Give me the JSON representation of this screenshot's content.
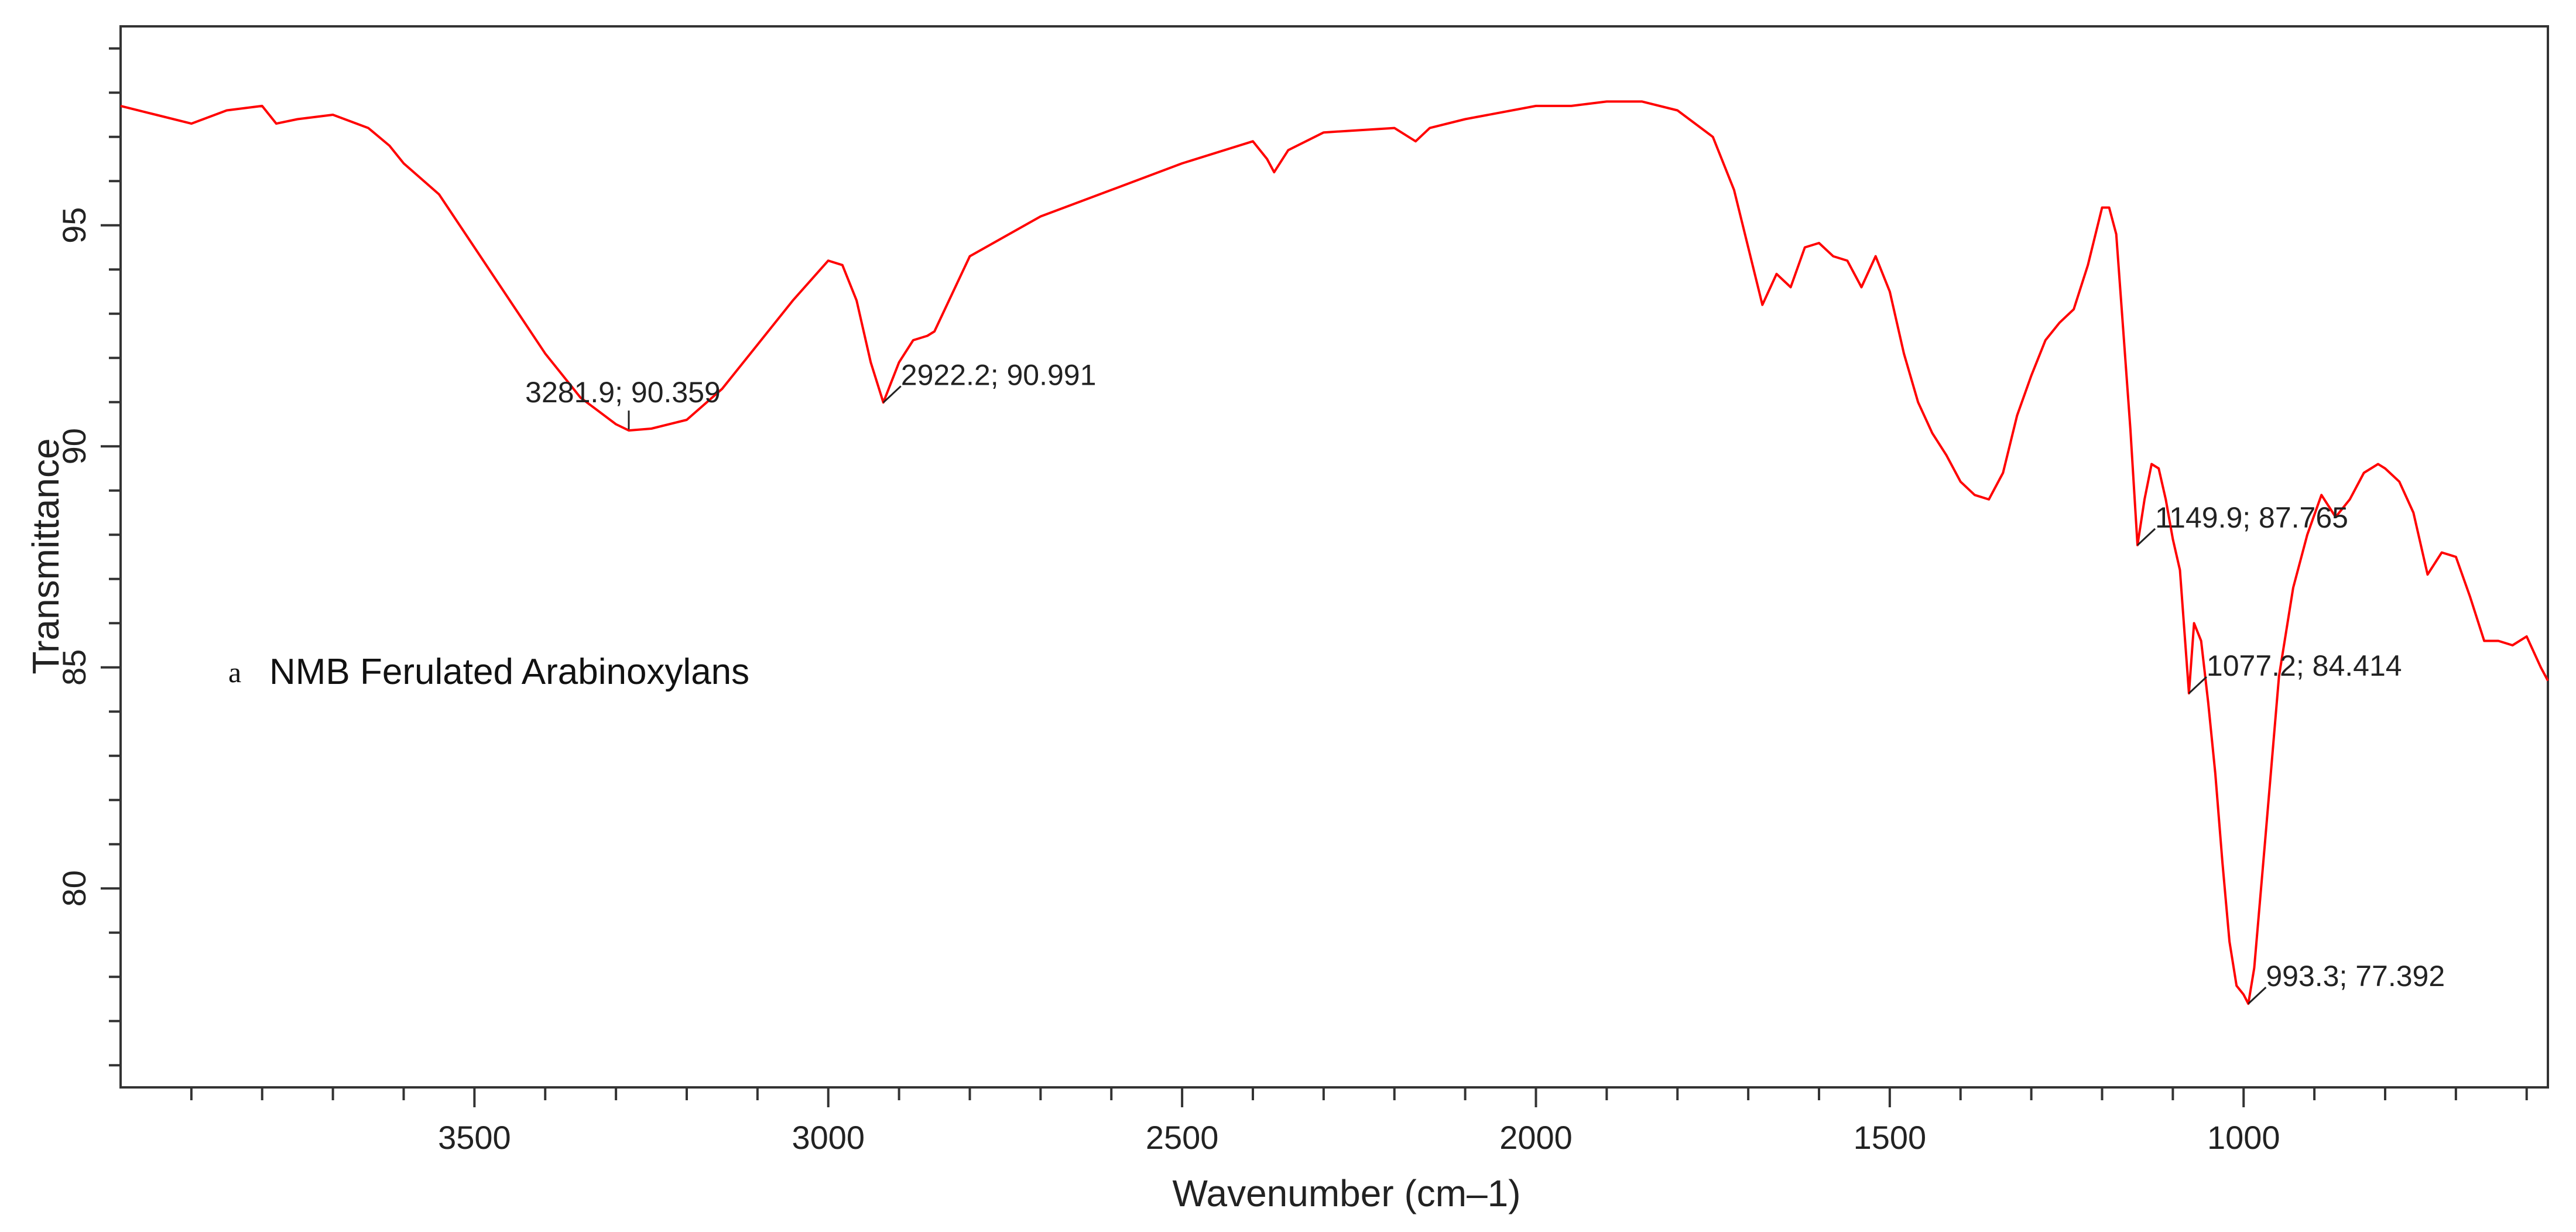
{
  "chart_data": {
    "type": "line",
    "xlabel": "Wavenumber (cm–1)",
    "ylabel": "Transmittance",
    "xlim": [
      4000,
      570
    ],
    "x_reversed": true,
    "ylim": [
      75.5,
      99.5
    ],
    "x_ticks": [
      3500,
      3000,
      2500,
      2000,
      1500,
      1000
    ],
    "y_ticks": [
      80,
      85,
      90,
      95
    ],
    "grid": false,
    "line_color": "#ff0000",
    "legend": {
      "marker": "a",
      "label": "NMB Ferulated Arabinoxylans",
      "placement": "middle-left"
    },
    "series": [
      {
        "x": [
          4000,
          3950,
          3900,
          3850,
          3800,
          3780,
          3750,
          3700,
          3650,
          3620,
          3600,
          3550,
          3500,
          3450,
          3400,
          3350,
          3300,
          3281.9,
          3250,
          3200,
          3150,
          3100,
          3050,
          3000,
          2980,
          2960,
          2940,
          2922.2,
          2900,
          2880,
          2860,
          2850,
          2800,
          2700,
          2600,
          2500,
          2400,
          2380,
          2370,
          2350,
          2300,
          2200,
          2170,
          2150,
          2100,
          2000,
          1950,
          1900,
          1850,
          1800,
          1750,
          1720,
          1700,
          1680,
          1660,
          1640,
          1620,
          1600,
          1580,
          1560,
          1540,
          1520,
          1500,
          1480,
          1460,
          1440,
          1420,
          1400,
          1380,
          1360,
          1340,
          1320,
          1300,
          1280,
          1260,
          1240,
          1220,
          1200,
          1190,
          1180,
          1170,
          1160,
          1149.9,
          1140,
          1130,
          1120,
          1110,
          1100,
          1090,
          1077.2,
          1070,
          1060,
          1050,
          1040,
          1030,
          1020,
          1010,
          1000,
          993.3,
          985,
          970,
          950,
          930,
          910,
          890,
          870,
          850,
          830,
          810,
          800,
          780,
          760,
          740,
          720,
          700,
          680,
          660,
          640,
          620,
          600,
          580,
          570
        ],
        "y": [
          97.7,
          97.5,
          97.3,
          97.6,
          97.7,
          97.3,
          97.4,
          97.5,
          97.2,
          96.8,
          96.4,
          95.7,
          94.5,
          93.3,
          92.1,
          91.1,
          90.5,
          90.359,
          90.4,
          90.6,
          91.3,
          92.3,
          93.3,
          94.2,
          94.1,
          93.3,
          91.9,
          90.991,
          91.9,
          92.4,
          92.5,
          92.6,
          94.3,
          95.2,
          95.8,
          96.4,
          96.9,
          96.5,
          96.2,
          96.7,
          97.1,
          97.2,
          96.9,
          97.2,
          97.4,
          97.7,
          97.7,
          97.8,
          97.8,
          97.6,
          97.0,
          95.8,
          94.5,
          93.2,
          93.9,
          93.6,
          94.5,
          94.6,
          94.3,
          94.2,
          93.6,
          94.3,
          93.5,
          92.1,
          91.0,
          90.3,
          89.8,
          89.2,
          88.9,
          88.8,
          89.4,
          90.7,
          91.6,
          92.4,
          92.8,
          93.1,
          94.1,
          95.4,
          95.4,
          94.8,
          92.6,
          90.4,
          87.765,
          88.8,
          89.6,
          89.5,
          88.8,
          87.9,
          87.2,
          84.414,
          86.0,
          85.6,
          84.2,
          82.6,
          80.6,
          78.8,
          77.8,
          77.6,
          77.392,
          78.2,
          81.0,
          84.8,
          86.8,
          88.0,
          88.9,
          88.4,
          88.8,
          89.4,
          89.6,
          89.5,
          89.2,
          88.5,
          87.1,
          87.6,
          87.5,
          86.6,
          85.6,
          85.6,
          85.5,
          85.7,
          85.0,
          84.7
        ]
      }
    ],
    "annotations": [
      {
        "x": 3281.9,
        "y": 90.359,
        "text": "3281.9; 90.359"
      },
      {
        "x": 2922.2,
        "y": 90.991,
        "text": "2922.2; 90.991"
      },
      {
        "x": 1149.9,
        "y": 87.765,
        "text": "1149.9; 87.765"
      },
      {
        "x": 1077.2,
        "y": 84.414,
        "text": "1077.2; 84.414"
      },
      {
        "x": 993.3,
        "y": 77.392,
        "text": "993.3; 77.392"
      }
    ]
  }
}
